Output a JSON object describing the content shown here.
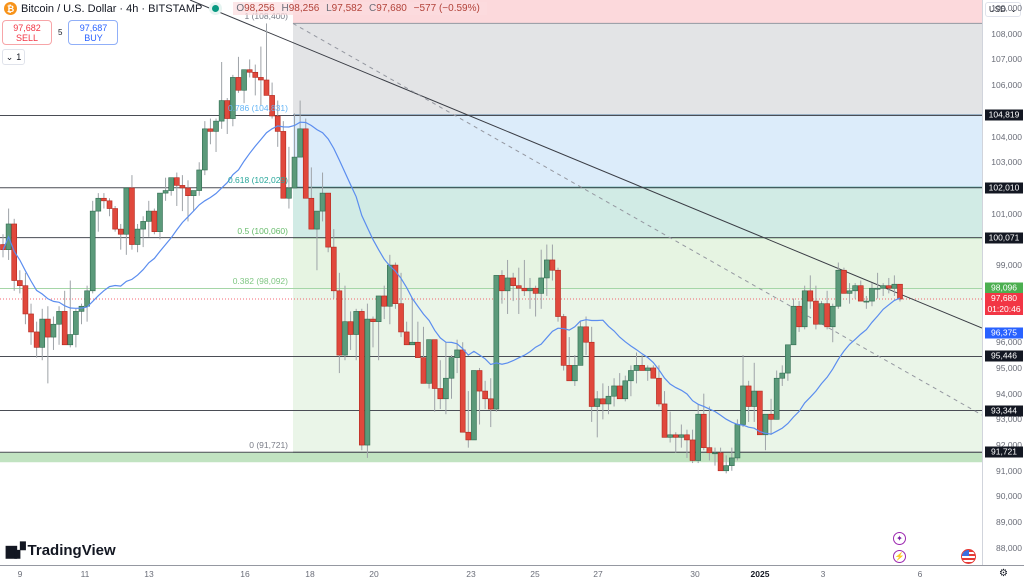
{
  "header": {
    "symbol_icon": "bitcoin-icon",
    "title": "Bitcoin / U.S. Dollar · 4h · BITSTAMP",
    "market_status": "open",
    "ohlc": {
      "open_key": "O",
      "open": "98,256",
      "high_key": "H",
      "high": "98,256",
      "low_key": "L",
      "low": "97,582",
      "close_key": "C",
      "close": "97,680",
      "change": "−577 (−0.59%)"
    }
  },
  "trade": {
    "sell_price": "97,682",
    "sell_label": "SELL",
    "spread": "5",
    "buy_price": "97,687",
    "buy_label": "BUY"
  },
  "collapse": {
    "icon": "chevron-down-icon",
    "count": "1"
  },
  "price_axis": {
    "currency": "USD",
    "ticks": [
      "109,000",
      "108,000",
      "107,000",
      "106,000",
      "104,000",
      "103,000",
      "101,000",
      "99,000",
      "96,000",
      "95,000",
      "94,000",
      "93,000",
      "92,000",
      "91,000",
      "90,000",
      "89,000",
      "88,000"
    ],
    "badges": [
      {
        "value": "104,819",
        "color": "#131722"
      },
      {
        "value": "102,010",
        "color": "#131722"
      },
      {
        "value": "100,071",
        "color": "#131722"
      },
      {
        "value": "98,096",
        "color": "#4caf50"
      },
      {
        "value": "97,680",
        "color": "#f23645",
        "countdown": "01:20:46"
      },
      {
        "value": "96,375",
        "color": "#2962ff"
      },
      {
        "value": "95,446",
        "color": "#131722"
      },
      {
        "value": "93,344",
        "color": "#131722"
      },
      {
        "value": "91,721",
        "color": "#131722"
      }
    ]
  },
  "time_axis": {
    "ticks": [
      {
        "label": "9",
        "x": 20
      },
      {
        "label": "11",
        "x": 85
      },
      {
        "label": "13",
        "x": 149
      },
      {
        "label": "16",
        "x": 245
      },
      {
        "label": "18",
        "x": 310
      },
      {
        "label": "20",
        "x": 374
      },
      {
        "label": "23",
        "x": 471
      },
      {
        "label": "25",
        "x": 535
      },
      {
        "label": "27",
        "x": 598
      },
      {
        "label": "30",
        "x": 695
      },
      {
        "label": "2025",
        "x": 760,
        "bold": true
      },
      {
        "label": "3",
        "x": 823
      },
      {
        "label": "6",
        "x": 920
      }
    ]
  },
  "branding": {
    "logo_text": "TradingView"
  },
  "colors": {
    "up": "#5b9a7a",
    "down": "#e0483c",
    "ma": "#5b8def",
    "zone_red": "#fcd9dc",
    "zone_gray": "#e3e4e6",
    "zone_blue": "#dcecfa",
    "zone_teal": "#d1ebe5",
    "zone_green": "#e6f4e2"
  },
  "chart_data": {
    "type": "candlestick",
    "title": "Bitcoin / U.S. Dollar · 4h · BITSTAMP",
    "xlabel": "",
    "ylabel": "USD",
    "ylim": [
      87500,
      109500
    ],
    "x_ticks": [
      "9",
      "11",
      "13",
      "16",
      "18",
      "20",
      "23",
      "25",
      "27",
      "30",
      "2025",
      "3",
      "6"
    ],
    "fibonacci_retracement": [
      {
        "level": 1,
        "price": 108400
      },
      {
        "level": 0.786,
        "price": 104831
      },
      {
        "level": 0.618,
        "price": 102029
      },
      {
        "level": 0.5,
        "price": 100060
      },
      {
        "level": 0.382,
        "price": 98092
      },
      {
        "level": 0,
        "price": 91721
      }
    ],
    "horizontal_levels": [
      104819,
      102010,
      100071,
      95446,
      93344,
      91721
    ],
    "last_price": 97680,
    "moving_average_last": 96375,
    "ohlc_last": {
      "open": 98256,
      "high": 98256,
      "low": 97582,
      "close": 97680,
      "change": -577,
      "change_pct": -0.59
    },
    "trendline": "descending from ~108,400 (Dec 17) through ~98,100 (Jan 5)",
    "candles": [
      [
        99800,
        100200,
        99300,
        99600
      ],
      [
        99600,
        101200,
        99200,
        100600
      ],
      [
        100600,
        100800,
        98000,
        98400
      ],
      [
        98400,
        98800,
        97900,
        98200
      ],
      [
        98200,
        98700,
        96700,
        97100
      ],
      [
        97100,
        97500,
        95900,
        96400
      ],
      [
        96400,
        96800,
        95400,
        95800
      ],
      [
        95800,
        97300,
        95300,
        96900
      ],
      [
        96900,
        97400,
        94400,
        96200
      ],
      [
        96200,
        97000,
        95700,
        96700
      ],
      [
        96700,
        97400,
        95900,
        97200
      ],
      [
        97200,
        98000,
        95900,
        95900
      ],
      [
        95900,
        98400,
        95800,
        96300
      ],
      [
        96300,
        97300,
        95800,
        97200
      ],
      [
        97200,
        97500,
        96700,
        97400
      ],
      [
        97400,
        98200,
        96800,
        98000
      ],
      [
        98000,
        101500,
        97900,
        101100
      ],
      [
        101100,
        101800,
        100300,
        101600
      ],
      [
        101600,
        101800,
        101200,
        101500
      ],
      [
        101500,
        101600,
        100900,
        101200
      ],
      [
        101200,
        101300,
        100300,
        100400
      ],
      [
        100400,
        100600,
        99600,
        100200
      ],
      [
        100200,
        102000,
        99400,
        102000
      ],
      [
        102000,
        102500,
        99600,
        99800
      ],
      [
        99800,
        100600,
        99500,
        100400
      ],
      [
        100400,
        100900,
        99700,
        100700
      ],
      [
        100700,
        101500,
        100100,
        101100
      ],
      [
        101100,
        101200,
        100200,
        100300
      ],
      [
        100300,
        101800,
        100000,
        101800
      ],
      [
        101800,
        102400,
        101500,
        101900
      ],
      [
        101900,
        102400,
        101700,
        102400
      ],
      [
        102400,
        102600,
        101300,
        102100
      ],
      [
        102100,
        102500,
        101100,
        102000
      ],
      [
        102000,
        102300,
        100700,
        101700
      ],
      [
        101700,
        101900,
        101100,
        101900
      ],
      [
        101900,
        103000,
        101700,
        102700
      ],
      [
        102700,
        104600,
        102500,
        104300
      ],
      [
        104300,
        104700,
        103700,
        104200
      ],
      [
        104200,
        104700,
        103400,
        104600
      ],
      [
        104600,
        106900,
        104300,
        105400
      ],
      [
        105400,
        105500,
        104100,
        104700
      ],
      [
        104700,
        106400,
        104400,
        106300
      ],
      [
        106300,
        107100,
        105700,
        105800
      ],
      [
        105800,
        106200,
        105300,
        106600
      ],
      [
        106600,
        107000,
        106300,
        106500
      ],
      [
        106500,
        106800,
        105600,
        106300
      ],
      [
        106300,
        107500,
        105200,
        106200
      ],
      [
        106200,
        108400,
        105900,
        105600
      ],
      [
        105600,
        106100,
        104700,
        104800
      ],
      [
        104800,
        105400,
        103600,
        104200
      ],
      [
        104200,
        104600,
        101900,
        101600
      ],
      [
        101600,
        103600,
        101200,
        102000
      ],
      [
        102000,
        104900,
        103100,
        103200
      ],
      [
        103200,
        105400,
        104400,
        104300
      ],
      [
        104300,
        104700,
        102400,
        101600
      ],
      [
        101600,
        102800,
        100800,
        100400
      ],
      [
        100400,
        101000,
        98800,
        101100
      ],
      [
        101100,
        102600,
        100700,
        101800
      ],
      [
        101800,
        101300,
        99500,
        99700
      ],
      [
        99700,
        100400,
        97700,
        98000
      ],
      [
        98000,
        98700,
        94800,
        95500
      ],
      [
        95500,
        98200,
        95300,
        96800
      ],
      [
        96800,
        97200,
        95700,
        96300
      ],
      [
        96300,
        97300,
        95300,
        97200
      ],
      [
        97200,
        97300,
        91800,
        92000
      ],
      [
        92000,
        97500,
        91500,
        96900
      ],
      [
        96900,
        97000,
        95800,
        96800
      ],
      [
        96800,
        97700,
        95300,
        97800
      ],
      [
        97800,
        98200,
        96900,
        97400
      ],
      [
        97400,
        99400,
        96700,
        99000
      ],
      [
        99000,
        99100,
        97300,
        97500
      ],
      [
        97500,
        98700,
        96200,
        96400
      ],
      [
        96400,
        96800,
        95900,
        95900
      ],
      [
        95900,
        97700,
        95900,
        96000
      ],
      [
        96000,
        96800,
        95400,
        95400
      ],
      [
        95400,
        96600,
        94600,
        94400
      ],
      [
        94400,
        96000,
        94200,
        96100
      ],
      [
        96100,
        96000,
        93300,
        94200
      ],
      [
        94200,
        95300,
        93400,
        93800
      ],
      [
        93800,
        96000,
        93200,
        94600
      ],
      [
        94600,
        95500,
        93800,
        95400
      ],
      [
        95400,
        96100,
        94800,
        95700
      ],
      [
        95700,
        96000,
        93800,
        92500
      ],
      [
        92500,
        94100,
        91900,
        92200
      ],
      [
        92200,
        94800,
        92200,
        94900
      ],
      [
        94900,
        95000,
        92800,
        94100
      ],
      [
        94100,
        94500,
        93400,
        93800
      ],
      [
        93800,
        94600,
        92700,
        93400
      ],
      [
        93400,
        98600,
        93300,
        98600
      ],
      [
        98600,
        98800,
        97500,
        98000
      ],
      [
        98000,
        99200,
        97100,
        98500
      ],
      [
        98500,
        98700,
        97600,
        98200
      ],
      [
        98200,
        98900,
        97100,
        98100
      ],
      [
        98100,
        99200,
        97800,
        98000
      ],
      [
        98000,
        98500,
        97300,
        98100
      ],
      [
        98100,
        98200,
        97000,
        97900
      ],
      [
        97900,
        99600,
        97300,
        98500
      ],
      [
        98500,
        99800,
        97800,
        99200
      ],
      [
        99200,
        99800,
        98400,
        98800
      ],
      [
        98800,
        98900,
        96800,
        97000
      ],
      [
        97000,
        97100,
        94900,
        95100
      ],
      [
        95100,
        96200,
        94500,
        94500
      ],
      [
        94500,
        95500,
        94300,
        95100
      ],
      [
        95100,
        96800,
        95200,
        96600
      ],
      [
        96600,
        97000,
        95500,
        96000
      ],
      [
        96000,
        96600,
        92900,
        93500
      ],
      [
        93500,
        94100,
        92300,
        93800
      ],
      [
        93800,
        94400,
        93000,
        93600
      ],
      [
        93600,
        94300,
        93200,
        93900
      ],
      [
        93900,
        94600,
        93500,
        94300
      ],
      [
        94300,
        94800,
        93800,
        93800
      ],
      [
        93800,
        94700,
        93700,
        94500
      ],
      [
        94500,
        95100,
        93900,
        94900
      ],
      [
        94900,
        95600,
        94400,
        95100
      ],
      [
        95100,
        95500,
        94900,
        94900
      ],
      [
        94900,
        95100,
        94500,
        95000
      ],
      [
        95000,
        95100,
        94700,
        94600
      ],
      [
        94600,
        95100,
        93500,
        93600
      ],
      [
        93600,
        94100,
        92500,
        92300
      ],
      [
        92300,
        93300,
        92100,
        92400
      ],
      [
        92400,
        92500,
        91700,
        92300
      ],
      [
        92300,
        92800,
        91900,
        92400
      ],
      [
        92400,
        92600,
        91500,
        92200
      ],
      [
        92200,
        92600,
        91300,
        91400
      ],
      [
        91400,
        93600,
        91300,
        93200
      ],
      [
        93200,
        94000,
        91800,
        91900
      ],
      [
        91900,
        93500,
        91400,
        91700
      ],
      [
        91700,
        91900,
        91200,
        91700
      ],
      [
        91700,
        91900,
        91000,
        91000
      ],
      [
        91000,
        91600,
        90900,
        91200
      ],
      [
        91200,
        91900,
        91000,
        91500
      ],
      [
        91500,
        93000,
        91400,
        92800
      ],
      [
        92800,
        95500,
        92700,
        94300
      ],
      [
        94300,
        94500,
        92900,
        93500
      ],
      [
        93500,
        95200,
        92900,
        94100
      ],
      [
        94100,
        93800,
        92600,
        92400
      ],
      [
        92400,
        92800,
        91800,
        93200
      ],
      [
        93200,
        93800,
        92400,
        93000
      ],
      [
        93000,
        94900,
        93100,
        94600
      ],
      [
        94600,
        95100,
        94300,
        94800
      ],
      [
        94800,
        95900,
        94500,
        95900
      ],
      [
        95900,
        97700,
        95900,
        97400
      ],
      [
        97400,
        97600,
        96400,
        96600
      ],
      [
        96600,
        98200,
        96500,
        98000
      ],
      [
        98000,
        98600,
        97300,
        97600
      ],
      [
        97600,
        98200,
        96500,
        96700
      ],
      [
        96700,
        97600,
        96900,
        97500
      ],
      [
        97500,
        98000,
        96500,
        96600
      ],
      [
        96600,
        97500,
        96000,
        97400
      ],
      [
        97400,
        99100,
        97300,
        98800
      ],
      [
        98800,
        98900,
        98000,
        97900
      ],
      [
        97900,
        98300,
        97500,
        98000
      ],
      [
        98000,
        98300,
        97700,
        98200
      ],
      [
        98200,
        98400,
        97700,
        97600
      ],
      [
        97600,
        97800,
        97300,
        97600
      ],
      [
        97600,
        98300,
        97400,
        98100
      ],
      [
        98100,
        98700,
        97700,
        98100
      ],
      [
        98100,
        98300,
        97800,
        98200
      ],
      [
        98200,
        98500,
        97900,
        98100
      ],
      [
        98100,
        98600,
        97800,
        98256
      ],
      [
        98256,
        98256,
        97582,
        97680
      ]
    ]
  }
}
